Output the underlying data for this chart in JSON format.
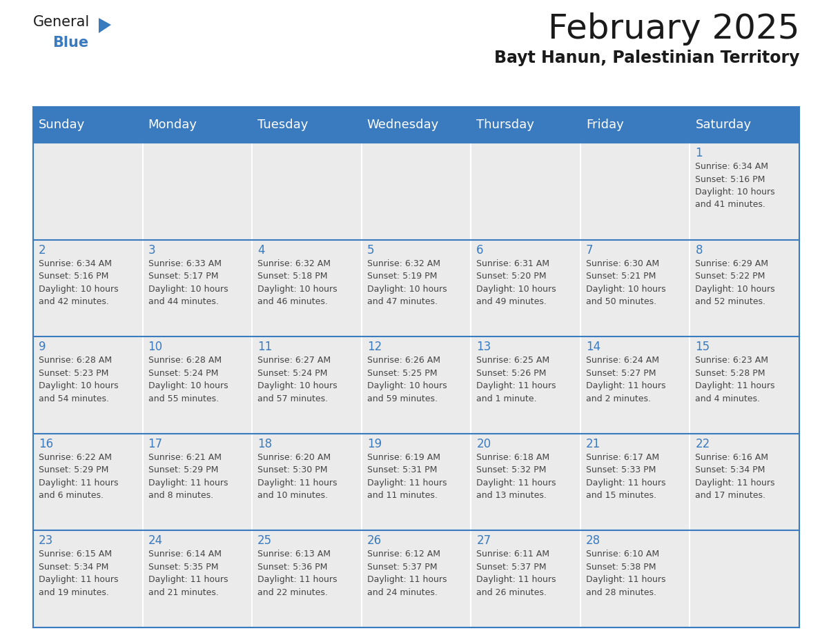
{
  "title": "February 2025",
  "subtitle": "Bayt Hanun, Palestinian Territory",
  "header_color": "#3a7abf",
  "header_text_color": "#ffffff",
  "cell_bg_color": "#ebebeb",
  "day_number_color": "#3a7abf",
  "text_color": "#444444",
  "line_color": "#3a7abf",
  "days_of_week": [
    "Sunday",
    "Monday",
    "Tuesday",
    "Wednesday",
    "Thursday",
    "Friday",
    "Saturday"
  ],
  "weeks": [
    [
      {
        "day": null
      },
      {
        "day": null
      },
      {
        "day": null
      },
      {
        "day": null
      },
      {
        "day": null
      },
      {
        "day": null
      },
      {
        "day": 1,
        "sunrise": "6:34 AM",
        "sunset": "5:16 PM",
        "daylight_line1": "Daylight: 10 hours",
        "daylight_line2": "and 41 minutes."
      }
    ],
    [
      {
        "day": 2,
        "sunrise": "6:34 AM",
        "sunset": "5:16 PM",
        "daylight_line1": "Daylight: 10 hours",
        "daylight_line2": "and 42 minutes."
      },
      {
        "day": 3,
        "sunrise": "6:33 AM",
        "sunset": "5:17 PM",
        "daylight_line1": "Daylight: 10 hours",
        "daylight_line2": "and 44 minutes."
      },
      {
        "day": 4,
        "sunrise": "6:32 AM",
        "sunset": "5:18 PM",
        "daylight_line1": "Daylight: 10 hours",
        "daylight_line2": "and 46 minutes."
      },
      {
        "day": 5,
        "sunrise": "6:32 AM",
        "sunset": "5:19 PM",
        "daylight_line1": "Daylight: 10 hours",
        "daylight_line2": "and 47 minutes."
      },
      {
        "day": 6,
        "sunrise": "6:31 AM",
        "sunset": "5:20 PM",
        "daylight_line1": "Daylight: 10 hours",
        "daylight_line2": "and 49 minutes."
      },
      {
        "day": 7,
        "sunrise": "6:30 AM",
        "sunset": "5:21 PM",
        "daylight_line1": "Daylight: 10 hours",
        "daylight_line2": "and 50 minutes."
      },
      {
        "day": 8,
        "sunrise": "6:29 AM",
        "sunset": "5:22 PM",
        "daylight_line1": "Daylight: 10 hours",
        "daylight_line2": "and 52 minutes."
      }
    ],
    [
      {
        "day": 9,
        "sunrise": "6:28 AM",
        "sunset": "5:23 PM",
        "daylight_line1": "Daylight: 10 hours",
        "daylight_line2": "and 54 minutes."
      },
      {
        "day": 10,
        "sunrise": "6:28 AM",
        "sunset": "5:24 PM",
        "daylight_line1": "Daylight: 10 hours",
        "daylight_line2": "and 55 minutes."
      },
      {
        "day": 11,
        "sunrise": "6:27 AM",
        "sunset": "5:24 PM",
        "daylight_line1": "Daylight: 10 hours",
        "daylight_line2": "and 57 minutes."
      },
      {
        "day": 12,
        "sunrise": "6:26 AM",
        "sunset": "5:25 PM",
        "daylight_line1": "Daylight: 10 hours",
        "daylight_line2": "and 59 minutes."
      },
      {
        "day": 13,
        "sunrise": "6:25 AM",
        "sunset": "5:26 PM",
        "daylight_line1": "Daylight: 11 hours",
        "daylight_line2": "and 1 minute."
      },
      {
        "day": 14,
        "sunrise": "6:24 AM",
        "sunset": "5:27 PM",
        "daylight_line1": "Daylight: 11 hours",
        "daylight_line2": "and 2 minutes."
      },
      {
        "day": 15,
        "sunrise": "6:23 AM",
        "sunset": "5:28 PM",
        "daylight_line1": "Daylight: 11 hours",
        "daylight_line2": "and 4 minutes."
      }
    ],
    [
      {
        "day": 16,
        "sunrise": "6:22 AM",
        "sunset": "5:29 PM",
        "daylight_line1": "Daylight: 11 hours",
        "daylight_line2": "and 6 minutes."
      },
      {
        "day": 17,
        "sunrise": "6:21 AM",
        "sunset": "5:29 PM",
        "daylight_line1": "Daylight: 11 hours",
        "daylight_line2": "and 8 minutes."
      },
      {
        "day": 18,
        "sunrise": "6:20 AM",
        "sunset": "5:30 PM",
        "daylight_line1": "Daylight: 11 hours",
        "daylight_line2": "and 10 minutes."
      },
      {
        "day": 19,
        "sunrise": "6:19 AM",
        "sunset": "5:31 PM",
        "daylight_line1": "Daylight: 11 hours",
        "daylight_line2": "and 11 minutes."
      },
      {
        "day": 20,
        "sunrise": "6:18 AM",
        "sunset": "5:32 PM",
        "daylight_line1": "Daylight: 11 hours",
        "daylight_line2": "and 13 minutes."
      },
      {
        "day": 21,
        "sunrise": "6:17 AM",
        "sunset": "5:33 PM",
        "daylight_line1": "Daylight: 11 hours",
        "daylight_line2": "and 15 minutes."
      },
      {
        "day": 22,
        "sunrise": "6:16 AM",
        "sunset": "5:34 PM",
        "daylight_line1": "Daylight: 11 hours",
        "daylight_line2": "and 17 minutes."
      }
    ],
    [
      {
        "day": 23,
        "sunrise": "6:15 AM",
        "sunset": "5:34 PM",
        "daylight_line1": "Daylight: 11 hours",
        "daylight_line2": "and 19 minutes."
      },
      {
        "day": 24,
        "sunrise": "6:14 AM",
        "sunset": "5:35 PM",
        "daylight_line1": "Daylight: 11 hours",
        "daylight_line2": "and 21 minutes."
      },
      {
        "day": 25,
        "sunrise": "6:13 AM",
        "sunset": "5:36 PM",
        "daylight_line1": "Daylight: 11 hours",
        "daylight_line2": "and 22 minutes."
      },
      {
        "day": 26,
        "sunrise": "6:12 AM",
        "sunset": "5:37 PM",
        "daylight_line1": "Daylight: 11 hours",
        "daylight_line2": "and 24 minutes."
      },
      {
        "day": 27,
        "sunrise": "6:11 AM",
        "sunset": "5:37 PM",
        "daylight_line1": "Daylight: 11 hours",
        "daylight_line2": "and 26 minutes."
      },
      {
        "day": 28,
        "sunrise": "6:10 AM",
        "sunset": "5:38 PM",
        "daylight_line1": "Daylight: 11 hours",
        "daylight_line2": "and 28 minutes."
      },
      {
        "day": null
      }
    ]
  ]
}
